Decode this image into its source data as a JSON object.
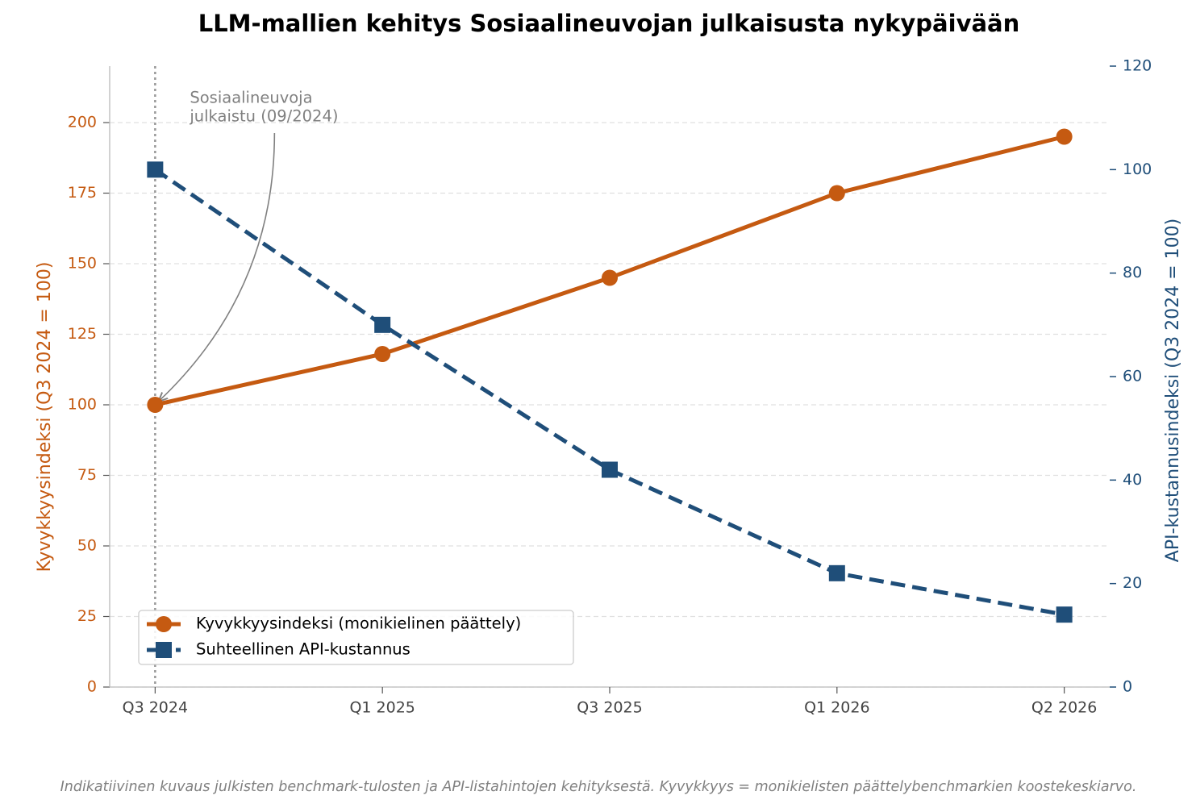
{
  "chart_data": {
    "type": "line",
    "title": "LLM-mallien kehitys Sosiaalineuvojan julkaisusta nykypäivään",
    "ylabel": "Kyvykkyysindeksi (Q3 2024 = 100)",
    "y2label": "API-kustannusindeksi (Q3 2024 = 100)",
    "categories": [
      "Q3 2024",
      "Q1 2025",
      "Q3 2025",
      "Q1 2026",
      "Q2 2026"
    ],
    "series": [
      {
        "name": "Kyvykkyysindeksi (monikielinen päättely)",
        "color": "#c55a11",
        "marker": "circle",
        "dash": "solid",
        "values": [
          100,
          118,
          145,
          175,
          195
        ]
      },
      {
        "name": "Suhteellinen API-kustannus",
        "color": "#1f4e79",
        "marker": "square",
        "dash": "dashed",
        "axis": "y2",
        "values": [
          100,
          70,
          42,
          22,
          14
        ]
      }
    ],
    "ylim": [
      0,
      220
    ],
    "yticks": [
      0,
      25,
      50,
      75,
      100,
      125,
      150,
      175,
      200
    ],
    "y2lim": [
      0,
      120
    ],
    "y2ticks": [
      0,
      20,
      40,
      60,
      80,
      100,
      120
    ],
    "grid": true,
    "legend": "lower left",
    "annotation": {
      "lines": [
        "Sosiaalineuvoja",
        "julkaistu (09/2024)"
      ],
      "category": 0,
      "y": 100
    },
    "footnote": "Indikatiivinen kuvaus julkisten benchmark-tulosten ja API-listahintojen kehityksestä. Kyvykkyys = monikielisten päättelybenchmarkien koostekeskiarvo."
  }
}
